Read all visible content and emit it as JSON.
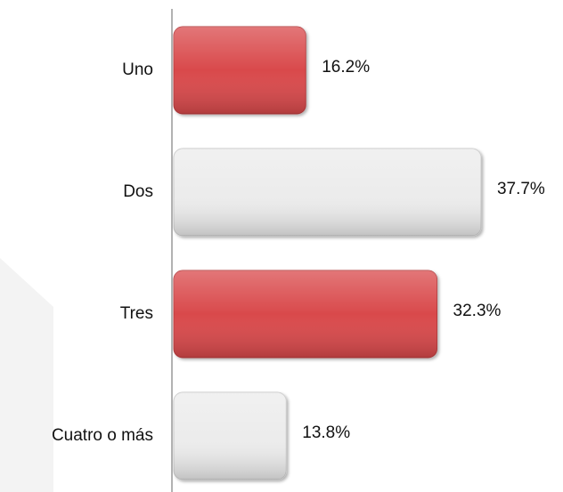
{
  "chart_data": {
    "type": "hbar",
    "categories": [
      "Uno",
      "Dos",
      "Tres",
      "Cuatro o más"
    ],
    "values": [
      16.2,
      37.7,
      32.3,
      13.8
    ],
    "value_labels": [
      "16.2%",
      "37.7%",
      "32.3%",
      "13.8%"
    ],
    "colors": [
      "#d94a4c",
      "#ececec",
      "#d94a4c",
      "#ececec"
    ]
  }
}
